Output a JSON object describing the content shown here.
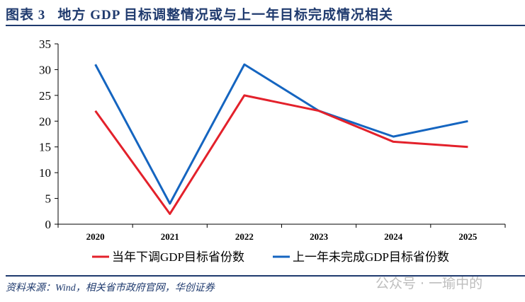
{
  "title": "图表 3   地方 GDP 目标调整情况或与上一年目标完成情况相关",
  "source": "资料来源：Wind，相关省市政府官网，华创证券",
  "watermark": "公众号 · 一瑜中的",
  "chart_data": {
    "type": "line",
    "categories": [
      "2020",
      "2021",
      "2022",
      "2023",
      "2024",
      "2025"
    ],
    "ylim": [
      0,
      35
    ],
    "yticks": [
      0,
      5,
      10,
      15,
      20,
      25,
      30,
      35
    ],
    "grid": false,
    "legend_position": "bottom",
    "series": [
      {
        "name": "当年下调GDP目标省份数",
        "color": "#e3212b",
        "values": [
          22,
          2,
          25,
          22,
          16,
          15
        ]
      },
      {
        "name": "上一年未完成GDP目标省份数",
        "color": "#1565c0",
        "values": [
          31,
          4,
          31,
          22,
          17,
          20
        ]
      }
    ]
  }
}
